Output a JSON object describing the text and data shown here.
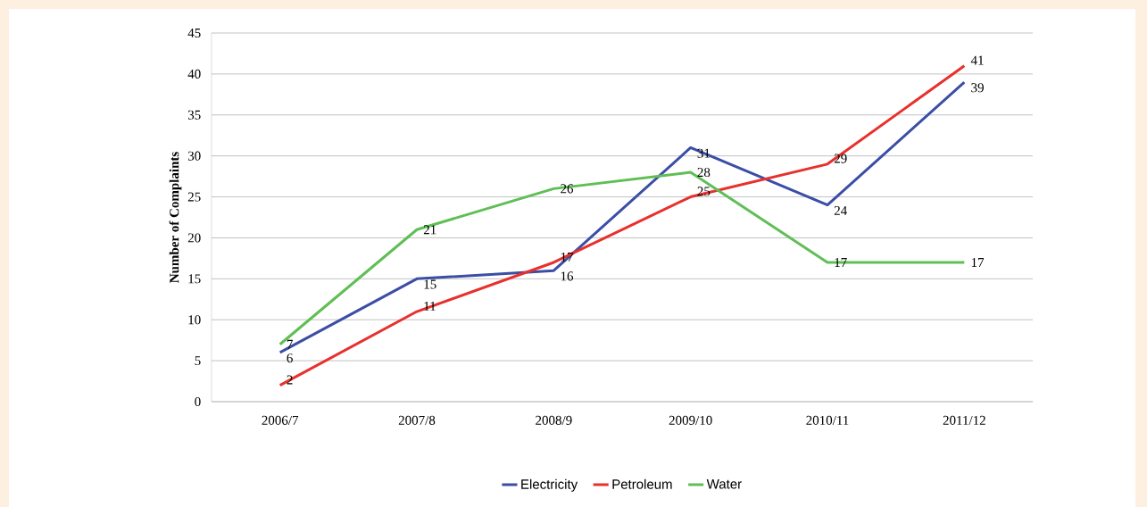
{
  "chart_data": {
    "type": "line",
    "ylabel": "Number of Complaints",
    "categories": [
      "2006/7",
      "2007/8",
      "2008/9",
      "2009/10",
      "2010/11",
      "2011/12"
    ],
    "series": [
      {
        "name": "Electricity",
        "color": "#3b4ea6",
        "values": [
          6,
          15,
          16,
          31,
          24,
          39
        ]
      },
      {
        "name": "Petroleum",
        "color": "#e8302c",
        "values": [
          2,
          11,
          17,
          25,
          29,
          41
        ]
      },
      {
        "name": "Water",
        "color": "#5fbf55",
        "values": [
          7,
          21,
          26,
          28,
          17,
          17
        ]
      }
    ],
    "ylim": [
      0,
      45
    ],
    "yticks": [
      0,
      5,
      10,
      15,
      20,
      25,
      30,
      35,
      40,
      45
    ],
    "grid": "y",
    "legend": "bottom",
    "marker": "none",
    "line_style": "solid",
    "data_labels": true
  }
}
